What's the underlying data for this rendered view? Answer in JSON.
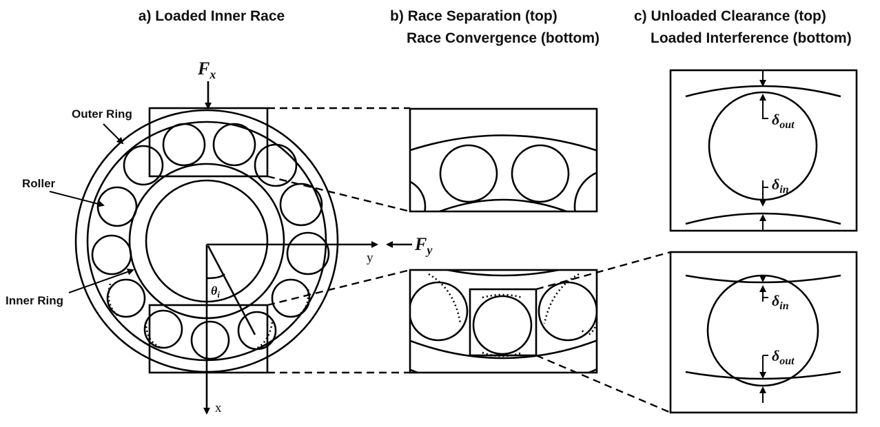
{
  "headings": {
    "a": "a) Loaded Inner Race",
    "b_top": "b) Race Separation (top)",
    "b_bottom": "Race Convergence (bottom)",
    "c_top": "c) Unloaded Clearance (top)",
    "c_bottom": "Loaded Interference (bottom)"
  },
  "labels": {
    "outer_ring": "Outer Ring",
    "roller": "Roller",
    "inner_ring": "Inner Ring"
  },
  "axes": {
    "x": "x",
    "y": "y"
  },
  "forces": {
    "fx_main": "F",
    "fx_sub": "x",
    "fy_main": "F",
    "fy_sub": "y"
  },
  "symbols": {
    "theta_main": "θ",
    "theta_sub": "i",
    "delta_main": "δ",
    "delta_out_sub": "out",
    "delta_in_sub": "in"
  }
}
